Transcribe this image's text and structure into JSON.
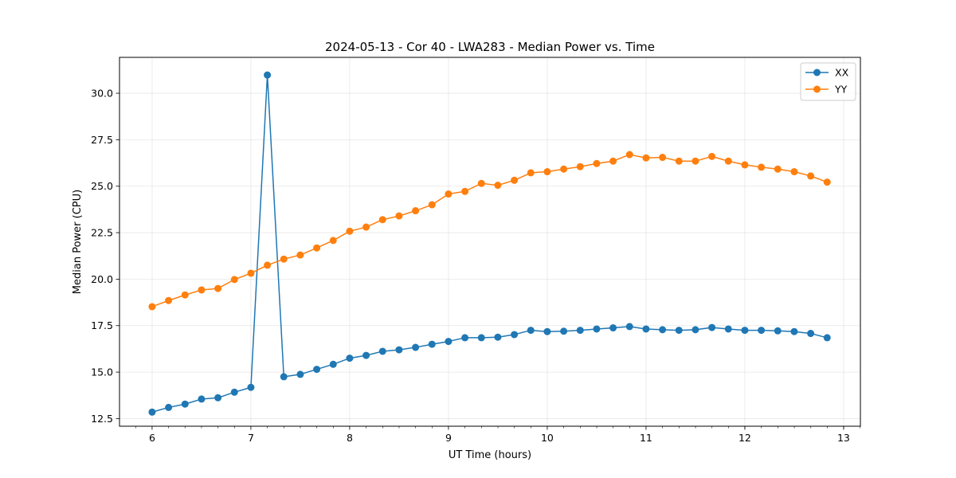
{
  "chart_data": {
    "type": "line",
    "title": "2024-05-13 - Cor 40 - LWA283 - Median Power vs. Time",
    "xlabel": "UT Time (hours)",
    "ylabel": "Median Power (CPU)",
    "xlim": [
      5.67,
      13.17
    ],
    "ylim": [
      12.09,
      31.93
    ],
    "x_ticks": [
      6,
      7,
      8,
      9,
      10,
      11,
      12,
      13
    ],
    "x_minor_tick_step": 0.1667,
    "y_ticks": [
      12.5,
      15.0,
      17.5,
      20.0,
      22.5,
      25.0,
      27.5,
      30.0
    ],
    "grid": true,
    "legend_position": "top-right",
    "x": [
      6.0,
      6.1667,
      6.3333,
      6.5,
      6.6667,
      6.8333,
      7.0,
      7.1667,
      7.3333,
      7.5,
      7.6667,
      7.8333,
      8.0,
      8.1667,
      8.3333,
      8.5,
      8.6667,
      8.8333,
      9.0,
      9.1667,
      9.3333,
      9.5,
      9.6667,
      9.8333,
      10.0,
      10.1667,
      10.3333,
      10.5,
      10.6667,
      10.8333,
      11.0,
      11.1667,
      11.3333,
      11.5,
      11.6667,
      11.8333,
      12.0,
      12.1667,
      12.3333,
      12.5,
      12.6667,
      12.8333
    ],
    "series": [
      {
        "name": "XX",
        "color": "#1f77b4",
        "values": [
          12.85,
          13.1,
          13.28,
          13.55,
          13.62,
          13.92,
          14.18,
          30.98,
          14.75,
          14.88,
          15.15,
          15.42,
          15.75,
          15.9,
          16.12,
          16.2,
          16.33,
          16.5,
          16.65,
          16.85,
          16.85,
          16.88,
          17.02,
          17.25,
          17.18,
          17.2,
          17.25,
          17.32,
          17.38,
          17.45,
          17.32,
          17.28,
          17.25,
          17.28,
          17.4,
          17.32,
          17.25,
          17.25,
          17.22,
          17.18,
          17.08,
          16.85
        ]
      },
      {
        "name": "YY",
        "color": "#ff7f0e",
        "values": [
          18.52,
          18.85,
          19.15,
          19.42,
          19.5,
          19.98,
          20.32,
          20.75,
          21.08,
          21.3,
          21.68,
          22.08,
          22.58,
          22.8,
          23.2,
          23.4,
          23.68,
          24.0,
          24.58,
          24.72,
          25.15,
          25.05,
          25.32,
          25.72,
          25.78,
          25.92,
          26.05,
          26.22,
          26.35,
          26.7,
          26.52,
          26.55,
          26.35,
          26.35,
          26.6,
          26.35,
          26.15,
          26.02,
          25.92,
          25.78,
          25.55,
          25.22
        ]
      }
    ]
  }
}
